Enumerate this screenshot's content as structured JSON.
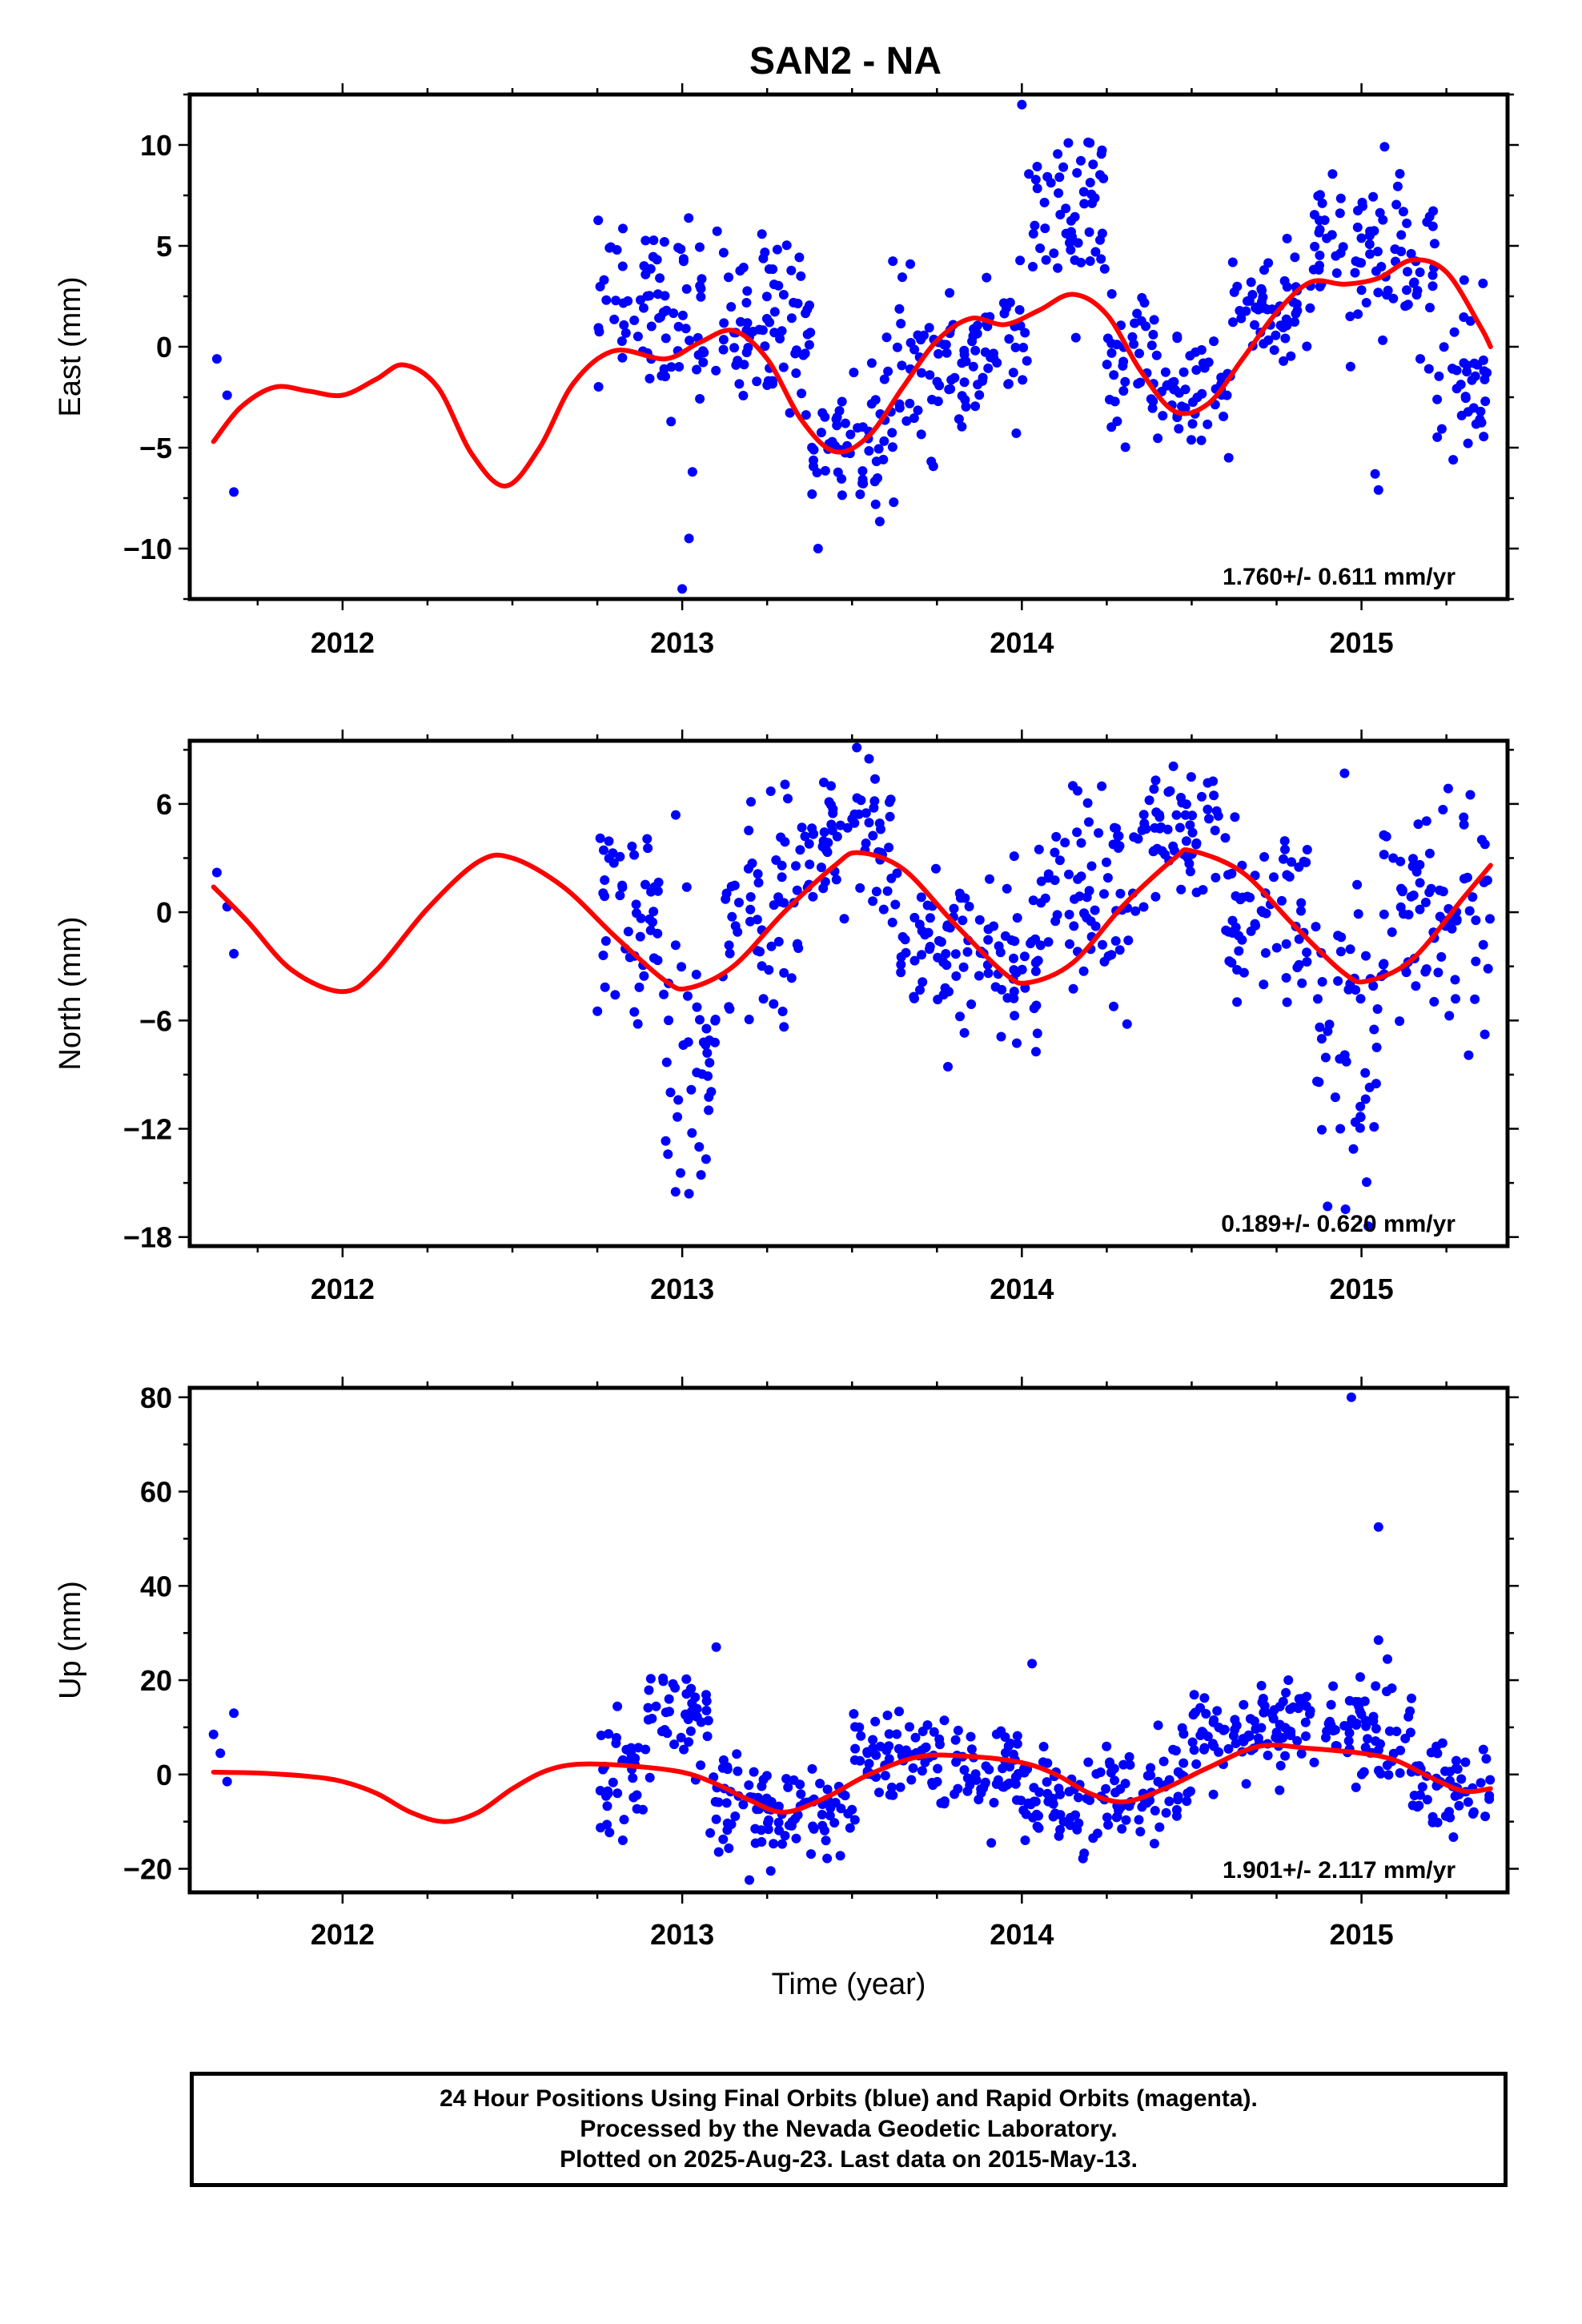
{
  "chart_data": [
    {
      "type": "scatter",
      "title": "SAN2 - NA",
      "ylabel": "East (mm)",
      "xlabel": "",
      "xlim": [
        2011.55,
        2015.43
      ],
      "ylim": [
        -12.5,
        12.5
      ],
      "xticks": [
        2012,
        2013,
        2014,
        2015
      ],
      "yticks": [
        -10,
        -5,
        0,
        5,
        10
      ],
      "rate_label": "1.760+/- 0.611 mm/yr",
      "point_color": "#0000ff",
      "trend_color": "#ff0000",
      "trend": [
        [
          2011.62,
          -4.7
        ],
        [
          2011.7,
          -3.0
        ],
        [
          2011.8,
          -2.0
        ],
        [
          2011.9,
          -2.2
        ],
        [
          2012.0,
          -2.4
        ],
        [
          2012.1,
          -1.6
        ],
        [
          2012.18,
          -0.9
        ],
        [
          2012.28,
          -2.0
        ],
        [
          2012.38,
          -5.3
        ],
        [
          2012.48,
          -6.9
        ],
        [
          2012.58,
          -5.0
        ],
        [
          2012.68,
          -1.8
        ],
        [
          2012.8,
          -0.2
        ],
        [
          2012.95,
          -0.6
        ],
        [
          2013.05,
          0.2
        ],
        [
          2013.15,
          0.8
        ],
        [
          2013.25,
          -0.6
        ],
        [
          2013.35,
          -3.6
        ],
        [
          2013.45,
          -5.2
        ],
        [
          2013.55,
          -4.4
        ],
        [
          2013.65,
          -2.0
        ],
        [
          2013.75,
          0.3
        ],
        [
          2013.85,
          1.4
        ],
        [
          2013.95,
          1.1
        ],
        [
          2014.05,
          1.8
        ],
        [
          2014.15,
          2.6
        ],
        [
          2014.25,
          1.6
        ],
        [
          2014.35,
          -1.2
        ],
        [
          2014.45,
          -3.2
        ],
        [
          2014.55,
          -2.8
        ],
        [
          2014.65,
          -0.6
        ],
        [
          2014.75,
          1.7
        ],
        [
          2014.85,
          3.2
        ],
        [
          2014.95,
          3.1
        ],
        [
          2015.05,
          3.4
        ],
        [
          2015.15,
          4.3
        ],
        [
          2015.25,
          3.7
        ],
        [
          2015.35,
          1.0
        ],
        [
          2015.38,
          0.0
        ]
      ],
      "outliers": [
        [
          2011.63,
          -0.6
        ],
        [
          2011.66,
          -2.4
        ],
        [
          2011.68,
          -7.2
        ],
        [
          2013.0,
          -12.0
        ],
        [
          2013.02,
          -9.5
        ],
        [
          2013.03,
          -6.2
        ],
        [
          2013.4,
          -10.0
        ],
        [
          2014.0,
          12.0
        ],
        [
          2014.2,
          10.1
        ],
        [
          2015.04,
          -6.3
        ],
        [
          2015.05,
          -7.1
        ],
        [
          2015.27,
          -5.6
        ]
      ],
      "clusters": [
        [
          2012.75,
          2013.38,
          1.6,
          4.0
        ],
        [
          2013.38,
          2013.62,
          -4.6,
          3.2
        ],
        [
          2013.62,
          2013.85,
          -1.0,
          3.5
        ],
        [
          2013.85,
          2014.02,
          -0.3,
          3.0
        ],
        [
          2014.02,
          2014.25,
          6.5,
          3.8
        ],
        [
          2014.25,
          2014.42,
          -1.0,
          3.0
        ],
        [
          2014.42,
          2014.62,
          -2.4,
          2.2
        ],
        [
          2014.62,
          2014.85,
          2.0,
          3.2
        ],
        [
          2014.85,
          2015.05,
          4.5,
          3.5
        ],
        [
          2015.05,
          2015.22,
          4.0,
          3.5
        ],
        [
          2015.22,
          2015.38,
          -1.5,
          3.5
        ]
      ]
    },
    {
      "type": "scatter",
      "title": "",
      "ylabel": "North (mm)",
      "xlabel": "",
      "xlim": [
        2011.55,
        2015.43
      ],
      "ylim": [
        -18.5,
        9.5
      ],
      "xticks": [
        2012,
        2013,
        2014,
        2015
      ],
      "yticks": [
        -18,
        -12,
        -6,
        0,
        6
      ],
      "rate_label": "0.189+/- 0.620 mm/yr",
      "point_color": "#0000ff",
      "trend_color": "#ff0000",
      "trend": [
        [
          2011.62,
          1.4
        ],
        [
          2011.72,
          -0.5
        ],
        [
          2011.85,
          -3.2
        ],
        [
          2012.0,
          -4.4
        ],
        [
          2012.1,
          -3.2
        ],
        [
          2012.25,
          0.2
        ],
        [
          2012.4,
          2.8
        ],
        [
          2012.5,
          3.0
        ],
        [
          2012.65,
          1.4
        ],
        [
          2012.8,
          -1.3
        ],
        [
          2012.95,
          -3.8
        ],
        [
          2013.02,
          -4.2
        ],
        [
          2013.15,
          -3.0
        ],
        [
          2013.3,
          0.0
        ],
        [
          2013.45,
          2.6
        ],
        [
          2013.52,
          3.3
        ],
        [
          2013.65,
          2.4
        ],
        [
          2013.8,
          -0.6
        ],
        [
          2013.95,
          -3.4
        ],
        [
          2014.02,
          -3.9
        ],
        [
          2014.15,
          -2.8
        ],
        [
          2014.3,
          0.4
        ],
        [
          2014.45,
          3.0
        ],
        [
          2014.5,
          3.4
        ],
        [
          2014.65,
          2.2
        ],
        [
          2014.8,
          -0.7
        ],
        [
          2014.95,
          -3.4
        ],
        [
          2015.02,
          -3.8
        ],
        [
          2015.15,
          -2.6
        ],
        [
          2015.3,
          0.8
        ],
        [
          2015.38,
          2.6
        ]
      ],
      "outliers": [
        [
          2011.63,
          2.2
        ],
        [
          2011.66,
          0.3
        ],
        [
          2011.68,
          -2.3
        ],
        [
          2013.02,
          -15.6
        ],
        [
          2013.05,
          -13.0
        ],
        [
          2013.55,
          8.5
        ],
        [
          2014.15,
          7.0
        ],
        [
          2014.9,
          -16.3
        ],
        [
          2014.95,
          7.7
        ],
        [
          2015.02,
          -17.4
        ]
      ],
      "clusters": [
        [
          2012.75,
          2012.95,
          -0.5,
          5.0
        ],
        [
          2012.95,
          2013.12,
          -8.5,
          8.0
        ],
        [
          2013.12,
          2013.35,
          0.0,
          5.5
        ],
        [
          2013.35,
          2013.62,
          3.8,
          3.8
        ],
        [
          2013.62,
          2013.85,
          -1.5,
          4.5
        ],
        [
          2013.85,
          2014.05,
          -2.8,
          4.5
        ],
        [
          2014.05,
          2014.35,
          1.0,
          5.0
        ],
        [
          2014.35,
          2014.6,
          3.8,
          3.5
        ],
        [
          2014.6,
          2014.85,
          0.0,
          4.5
        ],
        [
          2014.85,
          2015.05,
          -8.5,
          8.0
        ],
        [
          2015.05,
          2015.38,
          0.0,
          5.5
        ]
      ]
    },
    {
      "type": "scatter",
      "title": "",
      "ylabel": "Up (mm)",
      "xlabel": "Time (year)",
      "xlim": [
        2011.55,
        2015.43
      ],
      "ylim": [
        -25,
        82
      ],
      "xticks": [
        2012,
        2013,
        2014,
        2015
      ],
      "yticks": [
        -20,
        0,
        20,
        40,
        60,
        80
      ],
      "rate_label": "1.901+/- 2.117 mm/yr",
      "point_color": "#0000ff",
      "trend_color": "#ff0000",
      "trend": [
        [
          2011.62,
          0.5
        ],
        [
          2011.75,
          0.3
        ],
        [
          2011.9,
          -0.4
        ],
        [
          2012.0,
          -1.5
        ],
        [
          2012.1,
          -4.0
        ],
        [
          2012.2,
          -8.0
        ],
        [
          2012.3,
          -10.0
        ],
        [
          2012.4,
          -8.0
        ],
        [
          2012.5,
          -3.0
        ],
        [
          2012.6,
          0.8
        ],
        [
          2012.7,
          2.2
        ],
        [
          2012.85,
          1.8
        ],
        [
          2013.0,
          0.5
        ],
        [
          2013.1,
          -2.0
        ],
        [
          2013.2,
          -5.5
        ],
        [
          2013.3,
          -8.0
        ],
        [
          2013.42,
          -5.0
        ],
        [
          2013.55,
          0.0
        ],
        [
          2013.7,
          3.8
        ],
        [
          2013.85,
          3.8
        ],
        [
          2014.0,
          2.5
        ],
        [
          2014.1,
          0.0
        ],
        [
          2014.2,
          -4.0
        ],
        [
          2014.3,
          -5.8
        ],
        [
          2014.42,
          -3.0
        ],
        [
          2014.55,
          1.5
        ],
        [
          2014.7,
          6.0
        ],
        [
          2014.85,
          5.5
        ],
        [
          2015.0,
          4.5
        ],
        [
          2015.1,
          3.0
        ],
        [
          2015.2,
          -0.5
        ],
        [
          2015.3,
          -3.5
        ],
        [
          2015.38,
          -3.0
        ]
      ],
      "outliers": [
        [
          2011.62,
          8.5
        ],
        [
          2011.64,
          4.5
        ],
        [
          2011.66,
          -1.5
        ],
        [
          2011.68,
          13.0
        ],
        [
          2013.1,
          27.0
        ],
        [
          2014.03,
          23.5
        ],
        [
          2014.97,
          80.0
        ],
        [
          2015.05,
          52.5
        ],
        [
          2015.05,
          28.5
        ]
      ],
      "clusters": [
        [
          2012.75,
          2012.9,
          0.0,
          12.0
        ],
        [
          2012.9,
          2013.08,
          12.0,
          10.0
        ],
        [
          2013.08,
          2013.25,
          -8.0,
          10.0
        ],
        [
          2013.25,
          2013.5,
          -8.0,
          8.0
        ],
        [
          2013.5,
          2013.75,
          5.0,
          8.0
        ],
        [
          2013.75,
          2014.0,
          0.0,
          9.0
        ],
        [
          2014.0,
          2014.25,
          -5.0,
          10.0
        ],
        [
          2014.25,
          2014.5,
          -3.0,
          9.0
        ],
        [
          2014.5,
          2014.75,
          8.0,
          9.0
        ],
        [
          2014.75,
          2015.0,
          10.0,
          10.0
        ],
        [
          2015.0,
          2015.15,
          8.0,
          12.0
        ],
        [
          2015.15,
          2015.38,
          -3.0,
          9.0
        ]
      ]
    }
  ],
  "footer": {
    "line1": "24 Hour Positions Using Final Orbits (blue) and Rapid Orbits (magenta).",
    "line2": "Processed by the Nevada Geodetic Laboratory.",
    "line3": "Plotted on 2025-Aug-23. Last data on 2015-May-13."
  }
}
